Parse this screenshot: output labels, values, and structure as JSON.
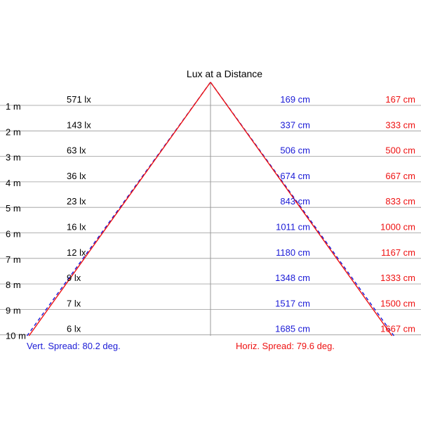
{
  "title": "Lux at a Distance",
  "rows": [
    {
      "distance": "1 m",
      "lux": "571 lx",
      "vertical": "169 cm",
      "horizontal": "167 cm"
    },
    {
      "distance": "2 m",
      "lux": "143 lx",
      "vertical": "337 cm",
      "horizontal": "333 cm"
    },
    {
      "distance": "3 m",
      "lux": "63 lx",
      "vertical": "506 cm",
      "horizontal": "500 cm"
    },
    {
      "distance": "4 m",
      "lux": "36 lx",
      "vertical": "674 cm",
      "horizontal": "667 cm"
    },
    {
      "distance": "5 m",
      "lux": "23 lx",
      "vertical": "843 cm",
      "horizontal": "833 cm"
    },
    {
      "distance": "6 m",
      "lux": "16 lx",
      "vertical": "1011 cm",
      "horizontal": "1000 cm"
    },
    {
      "distance": "7 m",
      "lux": "12 lx",
      "vertical": "1180 cm",
      "horizontal": "1167 cm"
    },
    {
      "distance": "8 m",
      "lux": "9 lx",
      "vertical": "1348 cm",
      "horizontal": "1333 cm"
    },
    {
      "distance": "9 m",
      "lux": "7 lx",
      "vertical": "1517 cm",
      "horizontal": "1500 cm"
    },
    {
      "distance": "10 m",
      "lux": "6 lx",
      "vertical": "1685 cm",
      "horizontal": "1667 cm"
    }
  ],
  "vert_spread": "Vert. Spread: 80.2 deg.",
  "horiz_spread": "Horiz. Spread: 79.6 deg.",
  "vert_spread_deg": 80.2,
  "horiz_spread_deg": 79.6,
  "colors": {
    "vertical": "#1a1ad6",
    "horizontal": "#ee1111",
    "gridline": "#999999",
    "text": "#000000"
  }
}
